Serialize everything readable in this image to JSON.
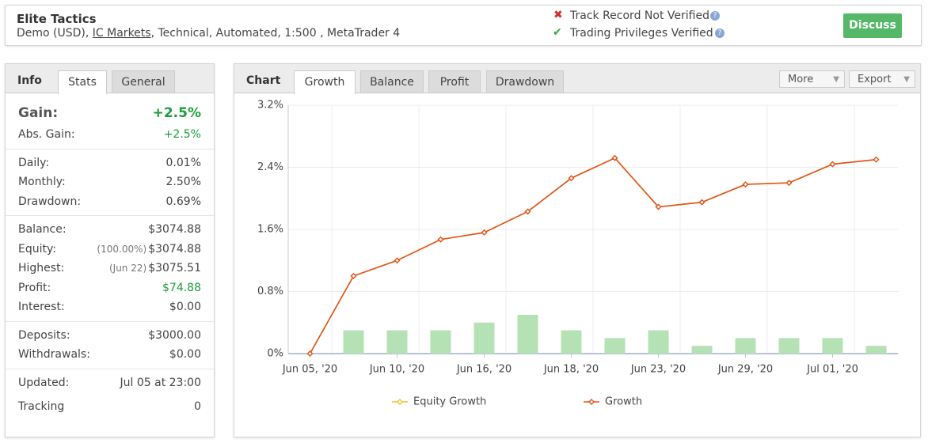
{
  "header": {
    "title": "Elite Tactics",
    "subtitle": [
      "Demo (USD), ",
      "IC Markets",
      ", Technical, Automated, 1:500 , MetaTrader 4"
    ],
    "status": [
      "Track Record Not Verified",
      "Trading Privileges Verified"
    ],
    "button": "Discuss"
  },
  "info_panel": {
    "label": "Info",
    "tabs": [
      "Stats",
      "General"
    ],
    "groups": [
      [
        {
          "label": "Gain:",
          "value": "+2.5%",
          "color": "#1a9e3a"
        },
        {
          "label": "Abs. Gain:",
          "value": "+2.5%",
          "color": "#1a9e3a"
        }
      ],
      [
        {
          "label": "Daily:",
          "value": "0.01%"
        },
        {
          "label": "Monthly:",
          "value": "2.50%"
        },
        {
          "label": "Drawdown:",
          "value": "0.69%"
        }
      ],
      [
        {
          "label": "Balance:",
          "value": "$3074.88"
        },
        {
          "label": "Equity:",
          "note": "(100.00%)",
          "value": "$3074.88"
        },
        {
          "label": "Highest:",
          "note": "(Jun 22)",
          "value": "$3075.51"
        },
        {
          "label": "Profit:",
          "value": "$74.88",
          "color": "#1a9e3a"
        },
        {
          "label": "Interest:",
          "value": "$0.00"
        }
      ],
      [
        {
          "label": "Deposits:",
          "value": "$3000.00"
        },
        {
          "label": "Withdrawals:",
          "value": "$0.00"
        }
      ],
      [
        {
          "label": "Updated:",
          "value": "Jul 05 at 23:00"
        },
        {
          "label": "Tracking",
          "value": "0"
        }
      ]
    ]
  },
  "chart_panel": {
    "label": "Chart",
    "tabs": [
      "Growth",
      "Balance",
      "Profit",
      "Drawdown"
    ],
    "buttons": [
      "More",
      "Export"
    ]
  },
  "chart_data": {
    "type": "line",
    "categories": [
      "Jun 05, '20",
      null,
      "Jun 10, '20",
      null,
      "Jun 16, '20",
      null,
      "Jun 18, '20",
      null,
      "Jun 23, '20",
      null,
      "Jun 29, '20",
      null,
      "Jul 01, '20",
      null
    ],
    "series": [
      {
        "name": "Equity Growth",
        "type": "line",
        "color": "#f2c230",
        "values": [
          0,
          1.0,
          1.2,
          1.47,
          1.56,
          1.83,
          2.26,
          2.52,
          1.89,
          1.95,
          2.18,
          2.2,
          2.44,
          2.5
        ]
      },
      {
        "name": "Growth",
        "type": "line",
        "color": "#e2521d",
        "values": [
          0,
          1.0,
          1.2,
          1.47,
          1.56,
          1.83,
          2.26,
          2.52,
          1.89,
          1.95,
          2.18,
          2.2,
          2.44,
          2.5
        ]
      },
      {
        "type": "bar",
        "color": "#b5e2b5",
        "values": [
          null,
          0.3,
          0.3,
          0.3,
          0.4,
          0.5,
          0.3,
          0.2,
          0.3,
          0.1,
          0.2,
          0.2,
          0.2,
          0.1
        ]
      }
    ],
    "ylim": [
      0,
      3.2
    ],
    "yticks": [
      {
        "value": 0,
        "label": "0%"
      },
      {
        "value": 0.8,
        "label": "0.8%"
      },
      {
        "value": 1.6,
        "label": "1.6%"
      },
      {
        "value": 2.4,
        "label": "2.4%"
      },
      {
        "value": 3.2,
        "label": "3.2%"
      }
    ],
    "grid": true
  }
}
